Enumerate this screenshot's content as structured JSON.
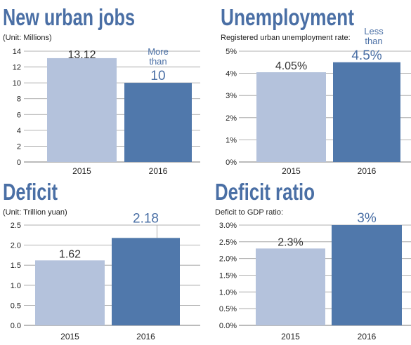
{
  "chart_data": [
    {
      "type": "bar",
      "title": "New urban jobs",
      "subtitle": "(Unit: Millions)",
      "categories": [
        "2015",
        "2016"
      ],
      "values": [
        13.12,
        10
      ],
      "value_labels": [
        "13.12",
        "10"
      ],
      "value_prefix": [
        "",
        "More than"
      ],
      "yticks": [
        "14",
        "12",
        "10",
        "8",
        "6",
        "4",
        "2",
        "0"
      ],
      "ylim": [
        0,
        14
      ],
      "grid": true,
      "colors": [
        "#b4c2dc",
        "#5078ab"
      ]
    },
    {
      "type": "bar",
      "title": "Unemployment",
      "subtitle": "Registered urban unemployment rate:",
      "categories": [
        "2015",
        "2016"
      ],
      "values": [
        4.05,
        4.5
      ],
      "value_labels": [
        "4.05%",
        "4.5%"
      ],
      "value_prefix": [
        "",
        "Less than"
      ],
      "yticks": [
        "5%",
        "4%",
        "3%",
        "2%",
        "1%",
        "0%"
      ],
      "ylim": [
        0,
        5
      ],
      "grid": true,
      "colors": [
        "#b4c2dc",
        "#5078ab"
      ]
    },
    {
      "type": "bar",
      "title": "Deficit",
      "subtitle": "(Unit: Trillion yuan)",
      "categories": [
        "2015",
        "2016"
      ],
      "values": [
        1.62,
        2.18
      ],
      "value_labels": [
        "1.62",
        "2.18"
      ],
      "value_prefix": [
        "",
        ""
      ],
      "yticks": [
        "2.5",
        "2.0",
        "1.5",
        "1.0",
        "0.5",
        "0.0"
      ],
      "ylim": [
        0,
        2.5
      ],
      "grid": true,
      "colors": [
        "#b4c2dc",
        "#5078ab"
      ]
    },
    {
      "type": "bar",
      "title": "Deficit ratio",
      "subtitle": "Deficit to GDP ratio:",
      "categories": [
        "2015",
        "2016"
      ],
      "values": [
        2.3,
        3.0
      ],
      "value_labels": [
        "2.3%",
        "3%"
      ],
      "value_prefix": [
        "",
        ""
      ],
      "yticks": [
        "3.0%",
        "2.5%",
        "2.0%",
        "1.5%",
        "1.0%",
        "0.5%",
        "0.0%"
      ],
      "ylim": [
        0,
        3
      ],
      "grid": true,
      "colors": [
        "#b4c2dc",
        "#5078ab"
      ]
    }
  ]
}
